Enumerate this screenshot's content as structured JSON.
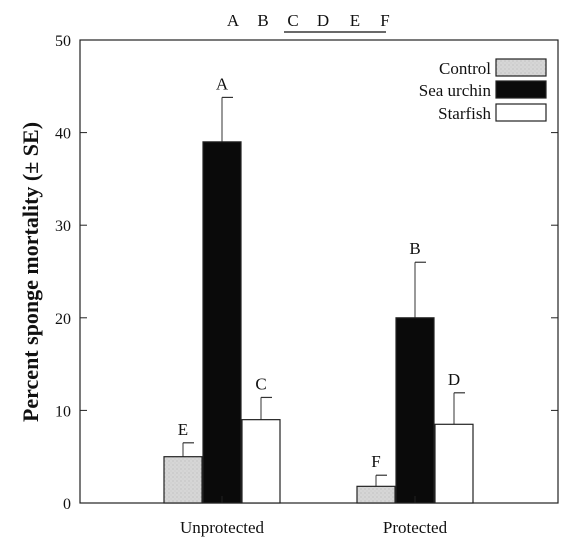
{
  "chart_data": {
    "type": "bar",
    "title": "",
    "xlabel": "",
    "ylabel": "Percent sponge mortality (± SE)",
    "ylim": [
      0,
      50
    ],
    "yticks": [
      "0",
      "10",
      "20",
      "30",
      "40",
      "50"
    ],
    "categories": [
      "Unprotected",
      "Protected"
    ],
    "series": [
      {
        "name": "Control",
        "values": [
          5,
          1.8
        ],
        "errors": [
          1.5,
          1.2
        ],
        "letters": [
          "E",
          "F"
        ],
        "color": "#d4d4d4"
      },
      {
        "name": "Sea urchin",
        "values": [
          39,
          20
        ],
        "errors": [
          4.8,
          6
        ],
        "letters": [
          "A",
          "B"
        ],
        "color": "#0a0a0a"
      },
      {
        "name": "Starfish",
        "values": [
          9,
          8.5
        ],
        "errors": [
          2.4,
          3.4
        ],
        "letters": [
          "C",
          "D"
        ],
        "color": "#ffffff"
      }
    ],
    "group_letters": [
      "A",
      "B",
      "C",
      "D",
      "E",
      "F"
    ],
    "legend_position": "top-right",
    "grid": false
  }
}
